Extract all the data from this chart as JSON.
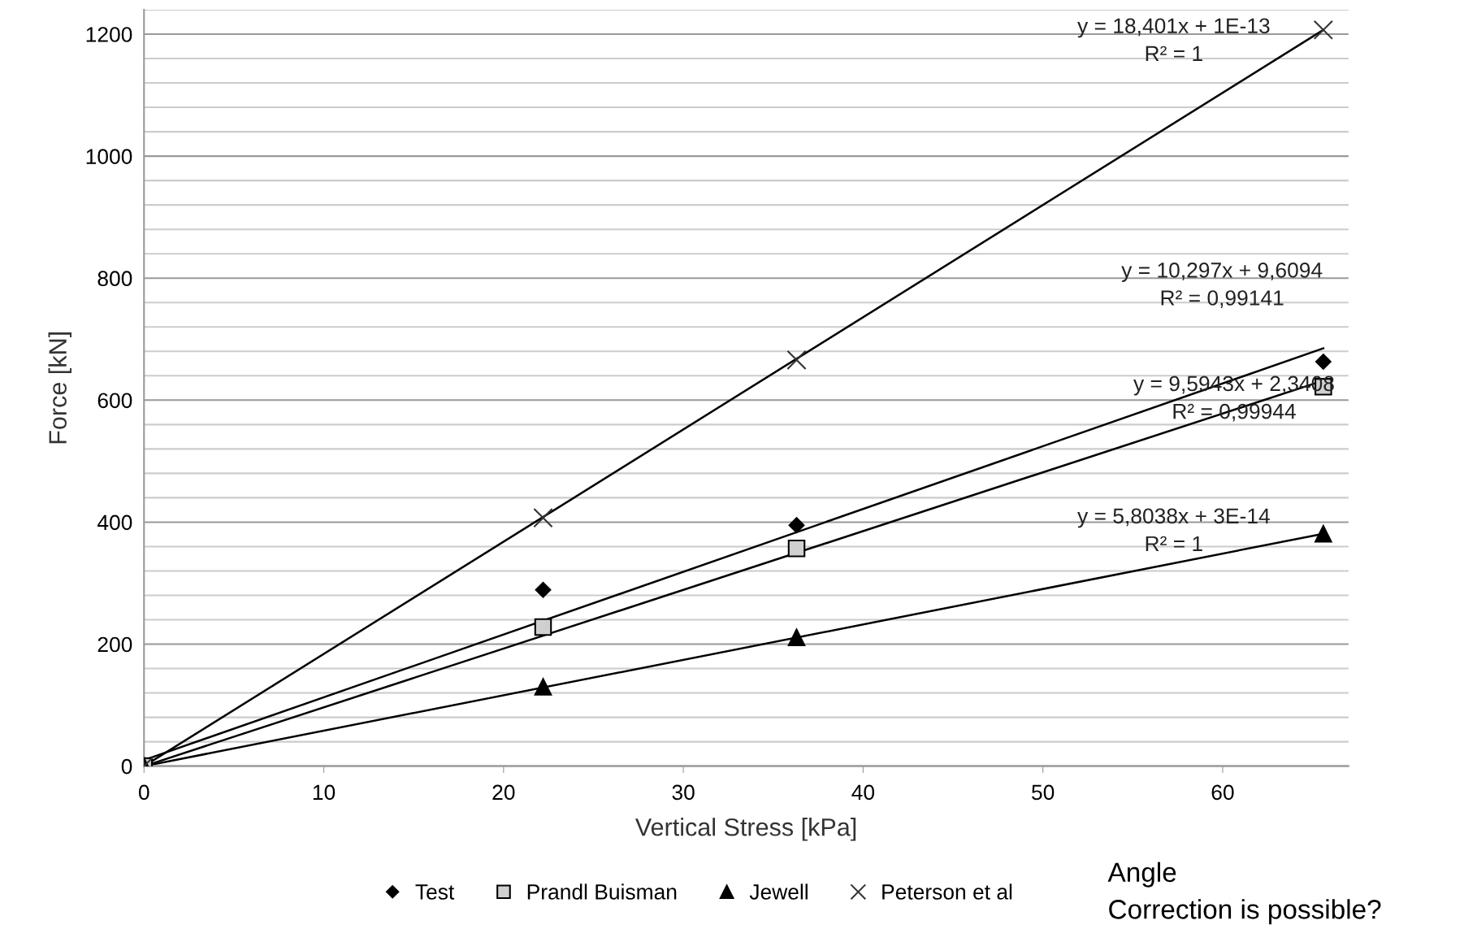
{
  "chart_data": {
    "type": "scatter",
    "xlabel": "Vertical Stress [kPa]",
    "ylabel": "Force [kN]",
    "xlim": [
      0,
      67
    ],
    "ylim": [
      0,
      1240
    ],
    "xticks": [
      0,
      10,
      20,
      30,
      40,
      50,
      60
    ],
    "yticks": [
      0,
      {
        "value": 40,
        "label": null
      },
      {
        "value": 80,
        "label": null
      },
      {
        "value": 120,
        "label": null
      },
      {
        "value": 160,
        "label": null
      },
      200,
      {
        "value": 240,
        "label": null
      },
      {
        "value": 280,
        "label": null
      },
      {
        "value": 320,
        "label": null
      },
      {
        "value": 360,
        "label": null
      },
      400,
      {
        "value": 440,
        "label": null
      },
      {
        "value": 480,
        "label": null
      },
      {
        "value": 520,
        "label": null
      },
      {
        "value": 560,
        "label": null
      },
      600,
      {
        "value": 640,
        "label": null
      },
      {
        "value": 680,
        "label": null
      },
      {
        "value": 720,
        "label": null
      },
      {
        "value": 760,
        "label": null
      },
      800,
      {
        "value": 840,
        "label": null
      },
      {
        "value": 880,
        "label": null
      },
      {
        "value": 920,
        "label": null
      },
      {
        "value": 960,
        "label": null
      },
      1000,
      {
        "value": 1040,
        "label": null
      },
      {
        "value": 1080,
        "label": null
      },
      {
        "value": 1120,
        "label": null
      },
      {
        "value": 1160,
        "label": null
      },
      1200,
      {
        "value": 1240,
        "label": null
      }
    ],
    "grid": "y",
    "legend": "bottom",
    "series": [
      {
        "name": "Test",
        "marker": "diamond",
        "color": "#000000",
        "x": [
          0,
          22.2,
          36.3,
          65.6
        ],
        "values": [
          0,
          289,
          395,
          663
        ]
      },
      {
        "name": "Prandl Buisman",
        "marker": "square",
        "color": "#d0d0d0",
        "x": [
          0,
          22.2,
          36.3,
          65.6
        ],
        "values": [
          0,
          228,
          357,
          622
        ]
      },
      {
        "name": "Jewell",
        "marker": "triangle",
        "color": "#000000",
        "x": [
          0,
          22.2,
          36.3,
          65.6
        ],
        "values": [
          0,
          130,
          211,
          381
        ]
      },
      {
        "name": "Peterson et al",
        "marker": "cross",
        "color": "#333333",
        "x": [
          0,
          22.2,
          36.3,
          65.6
        ],
        "values": [
          0,
          407,
          666,
          1207
        ]
      },
      {
        "type": "line",
        "color": "#000000",
        "x": [
          0,
          65.6
        ],
        "values": [
          10,
          685
        ]
      },
      {
        "type": "line",
        "color": "#000000",
        "x": [
          0,
          65.6
        ],
        "values": [
          0,
          632
        ]
      },
      {
        "type": "line",
        "color": "#000000",
        "x": [
          0,
          65.6
        ],
        "values": [
          0,
          381
        ]
      },
      {
        "type": "line",
        "color": "#000000",
        "x": [
          0,
          65.6
        ],
        "values": [
          0,
          1207
        ]
      }
    ],
    "annotations": [
      "y = 18,401x + 1E-13\nR² = 1",
      "y = 10,297x + 9,6094\nR² = 0,99141",
      "y = 9,5943x + 2,3408\nR² = 0,99944",
      "y = 5,8038x + 3E-14\nR² = 1",
      "Angle\nCorrection is possible?"
    ]
  }
}
